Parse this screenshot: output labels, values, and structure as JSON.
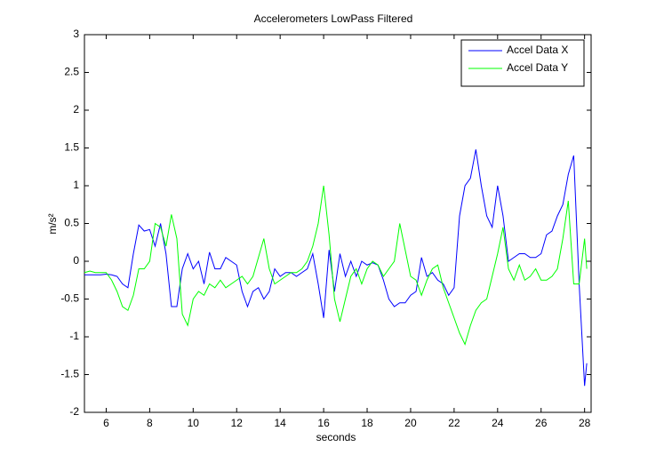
{
  "chart_data": {
    "type": "line",
    "title": "Accelerometers LowPass Filtered",
    "x_label": "seconds",
    "y_label": "m/s²",
    "x": [
      5,
      5.25,
      5.5,
      5.75,
      6,
      6.25,
      6.5,
      6.75,
      7,
      7.25,
      7.5,
      7.75,
      8,
      8.25,
      8.5,
      8.75,
      9,
      9.25,
      9.5,
      9.75,
      10,
      10.25,
      10.5,
      10.75,
      11,
      11.25,
      11.5,
      11.75,
      12,
      12.25,
      12.5,
      12.75,
      13,
      13.25,
      13.5,
      13.75,
      14,
      14.25,
      14.5,
      14.75,
      15,
      15.25,
      15.5,
      15.75,
      16,
      16.25,
      16.5,
      16.75,
      17,
      17.25,
      17.5,
      17.75,
      18,
      18.25,
      18.5,
      18.75,
      19,
      19.25,
      19.5,
      19.75,
      20,
      20.25,
      20.5,
      20.75,
      21,
      21.25,
      21.5,
      21.75,
      22,
      22.25,
      22.5,
      22.75,
      23,
      23.25,
      23.5,
      23.75,
      24,
      24.25,
      24.5,
      24.75,
      25,
      25.25,
      25.5,
      25.75,
      26,
      26.25,
      26.5,
      26.75,
      27,
      27.25,
      27.5,
      27.75,
      28,
      28.1
    ],
    "series": [
      {
        "name": "Accel Data X",
        "color": "#0000ff",
        "values": [
          -0.18,
          -0.18,
          -0.18,
          -0.18,
          -0.17,
          -0.18,
          -0.2,
          -0.3,
          -0.35,
          0.1,
          0.48,
          0.4,
          0.42,
          0.2,
          0.5,
          0.1,
          -0.6,
          -0.6,
          -0.1,
          0.1,
          -0.1,
          0.0,
          -0.3,
          0.12,
          -0.1,
          -0.1,
          0.05,
          0.0,
          -0.05,
          -0.4,
          -0.6,
          -0.4,
          -0.35,
          -0.5,
          -0.4,
          -0.1,
          -0.2,
          -0.15,
          -0.15,
          -0.2,
          -0.15,
          -0.1,
          0.1,
          -0.3,
          -0.75,
          0.15,
          -0.4,
          0.1,
          -0.2,
          0.0,
          -0.2,
          0.0,
          -0.05,
          -0.02,
          -0.05,
          -0.25,
          -0.5,
          -0.6,
          -0.55,
          -0.55,
          -0.45,
          -0.4,
          0.05,
          -0.2,
          -0.15,
          -0.25,
          -0.3,
          -0.45,
          -0.35,
          0.6,
          1.0,
          1.1,
          1.48,
          1.0,
          0.6,
          0.45,
          1.0,
          0.6,
          0.0,
          0.05,
          0.1,
          0.1,
          0.05,
          0.05,
          0.1,
          0.35,
          0.4,
          0.6,
          0.75,
          1.15,
          1.4,
          -0.3,
          -1.65,
          -1.35
        ]
      },
      {
        "name": "Accel Data Y",
        "color": "#00ff00",
        "values": [
          -0.15,
          -0.13,
          -0.15,
          -0.15,
          -0.15,
          -0.25,
          -0.4,
          -0.6,
          -0.65,
          -0.45,
          -0.1,
          -0.1,
          0.0,
          0.5,
          0.45,
          0.2,
          0.62,
          0.3,
          -0.7,
          -0.85,
          -0.5,
          -0.4,
          -0.45,
          -0.3,
          -0.35,
          -0.25,
          -0.35,
          -0.3,
          -0.25,
          -0.2,
          -0.3,
          -0.2,
          0.05,
          0.3,
          -0.1,
          -0.3,
          -0.25,
          -0.2,
          -0.15,
          -0.15,
          -0.1,
          0.0,
          0.2,
          0.5,
          1.0,
          0.35,
          -0.5,
          -0.8,
          -0.5,
          -0.2,
          -0.1,
          -0.3,
          -0.1,
          0.0,
          -0.05,
          -0.2,
          -0.1,
          0.0,
          0.5,
          0.15,
          -0.2,
          -0.25,
          -0.45,
          -0.25,
          -0.1,
          -0.05,
          -0.35,
          -0.55,
          -0.75,
          -0.95,
          -1.1,
          -0.85,
          -0.65,
          -0.55,
          -0.5,
          -0.2,
          0.1,
          0.45,
          -0.1,
          -0.25,
          -0.05,
          -0.25,
          -0.2,
          -0.1,
          -0.25,
          -0.25,
          -0.2,
          -0.1,
          0.3,
          0.8,
          -0.3,
          -0.3,
          0.3,
          -0.1
        ]
      }
    ],
    "xlim": [
      5,
      28.3
    ],
    "xticks": [
      6,
      8,
      10,
      12,
      14,
      16,
      18,
      20,
      22,
      24,
      26,
      28
    ],
    "ylim": [
      -2,
      3
    ],
    "yticks": [
      -2,
      -1.5,
      -1,
      -0.5,
      0,
      0.5,
      1,
      1.5,
      2,
      2.5,
      3
    ],
    "grid": false,
    "legend": "upper right"
  }
}
